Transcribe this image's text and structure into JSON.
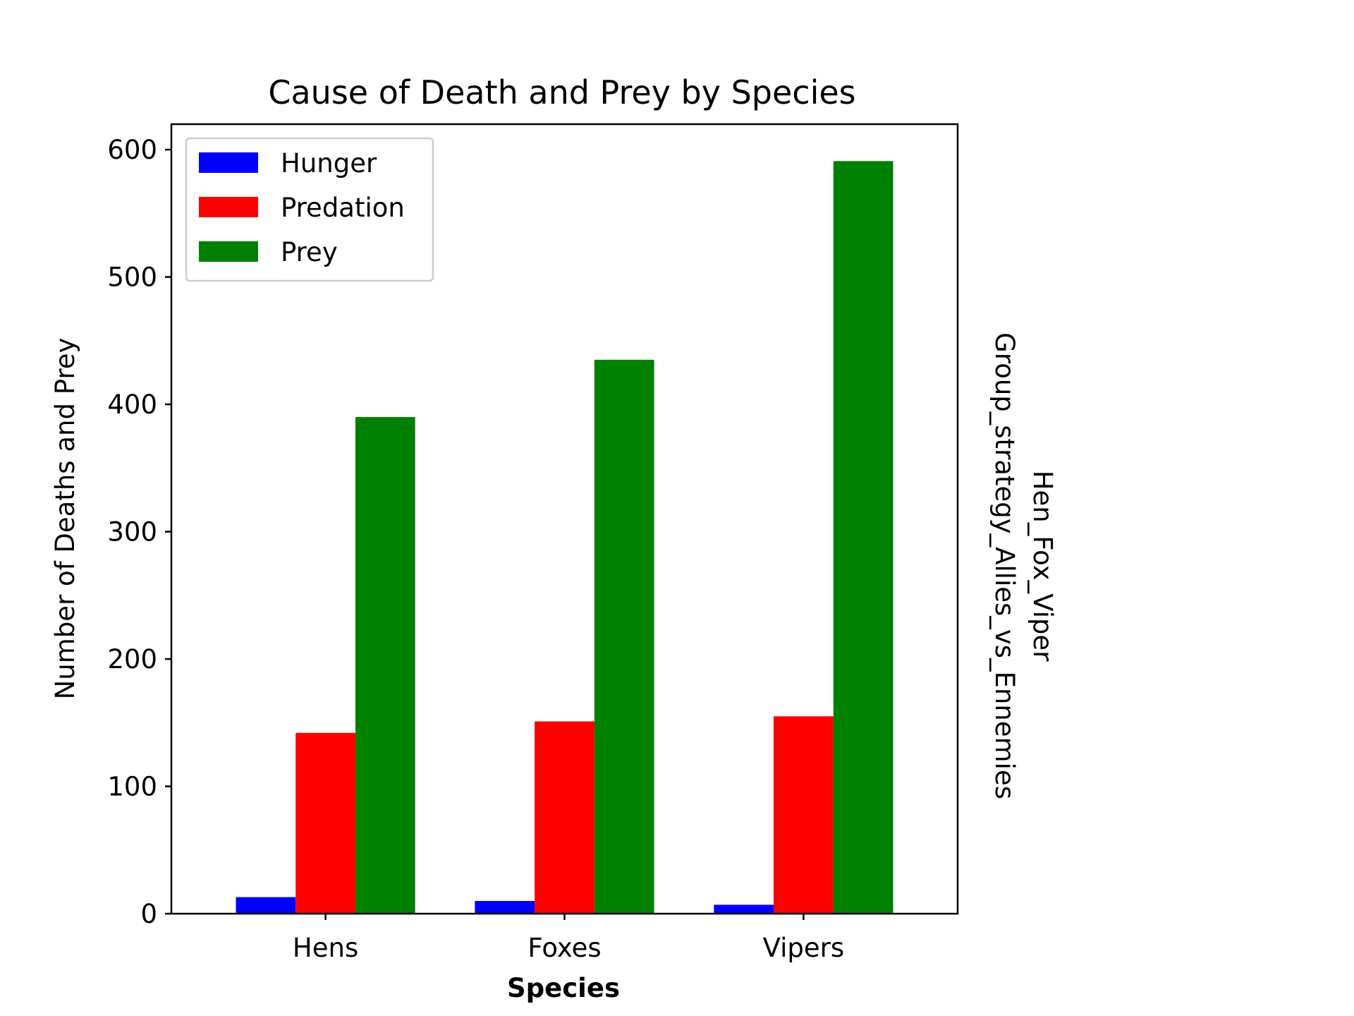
{
  "chart_data": {
    "type": "bar",
    "title": "Cause of Death and Prey by Species",
    "xlabel": "Species",
    "ylabel": "Number of Deaths and Prey",
    "categories": [
      "Hens",
      "Foxes",
      "Vipers"
    ],
    "series": [
      {
        "name": "Hunger",
        "color": "#0000ff",
        "values": [
          13,
          10,
          7
        ]
      },
      {
        "name": "Predation",
        "color": "#ff0000",
        "values": [
          142,
          151,
          155
        ]
      },
      {
        "name": "Prey",
        "color": "#008000",
        "values": [
          390,
          435,
          591
        ]
      }
    ],
    "ylim": [
      0,
      620
    ],
    "yticks": [
      0,
      100,
      200,
      300,
      400,
      500,
      600
    ],
    "legend_position": "upper-left",
    "grid": false,
    "side_note_lines": [
      "Hen_Fox_Viper",
      "Group_strategy_Allies_vs_Ennemies"
    ]
  }
}
